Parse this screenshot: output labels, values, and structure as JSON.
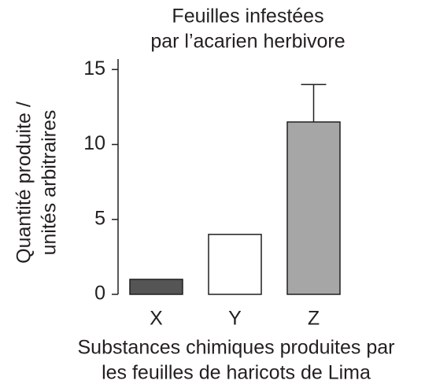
{
  "chart_data": {
    "type": "bar",
    "title": [
      "Feuilles infestées",
      "par l’acarien herbivore"
    ],
    "ylabel": [
      "Quantité produite /",
      "unités arbitraires"
    ],
    "xlabel": [
      "Substances chimiques produites par",
      "les feuilles de haricots de Lima"
    ],
    "categories": [
      "X",
      "Y",
      "Z"
    ],
    "values": [
      1,
      4,
      11.5
    ],
    "errors": [
      null,
      null,
      2.5
    ],
    "colors": [
      "#555555",
      "#ffffff",
      "#a6a6a6"
    ],
    "ylim": [
      0,
      15.7
    ],
    "yticks": [
      0,
      5,
      10,
      15
    ]
  }
}
